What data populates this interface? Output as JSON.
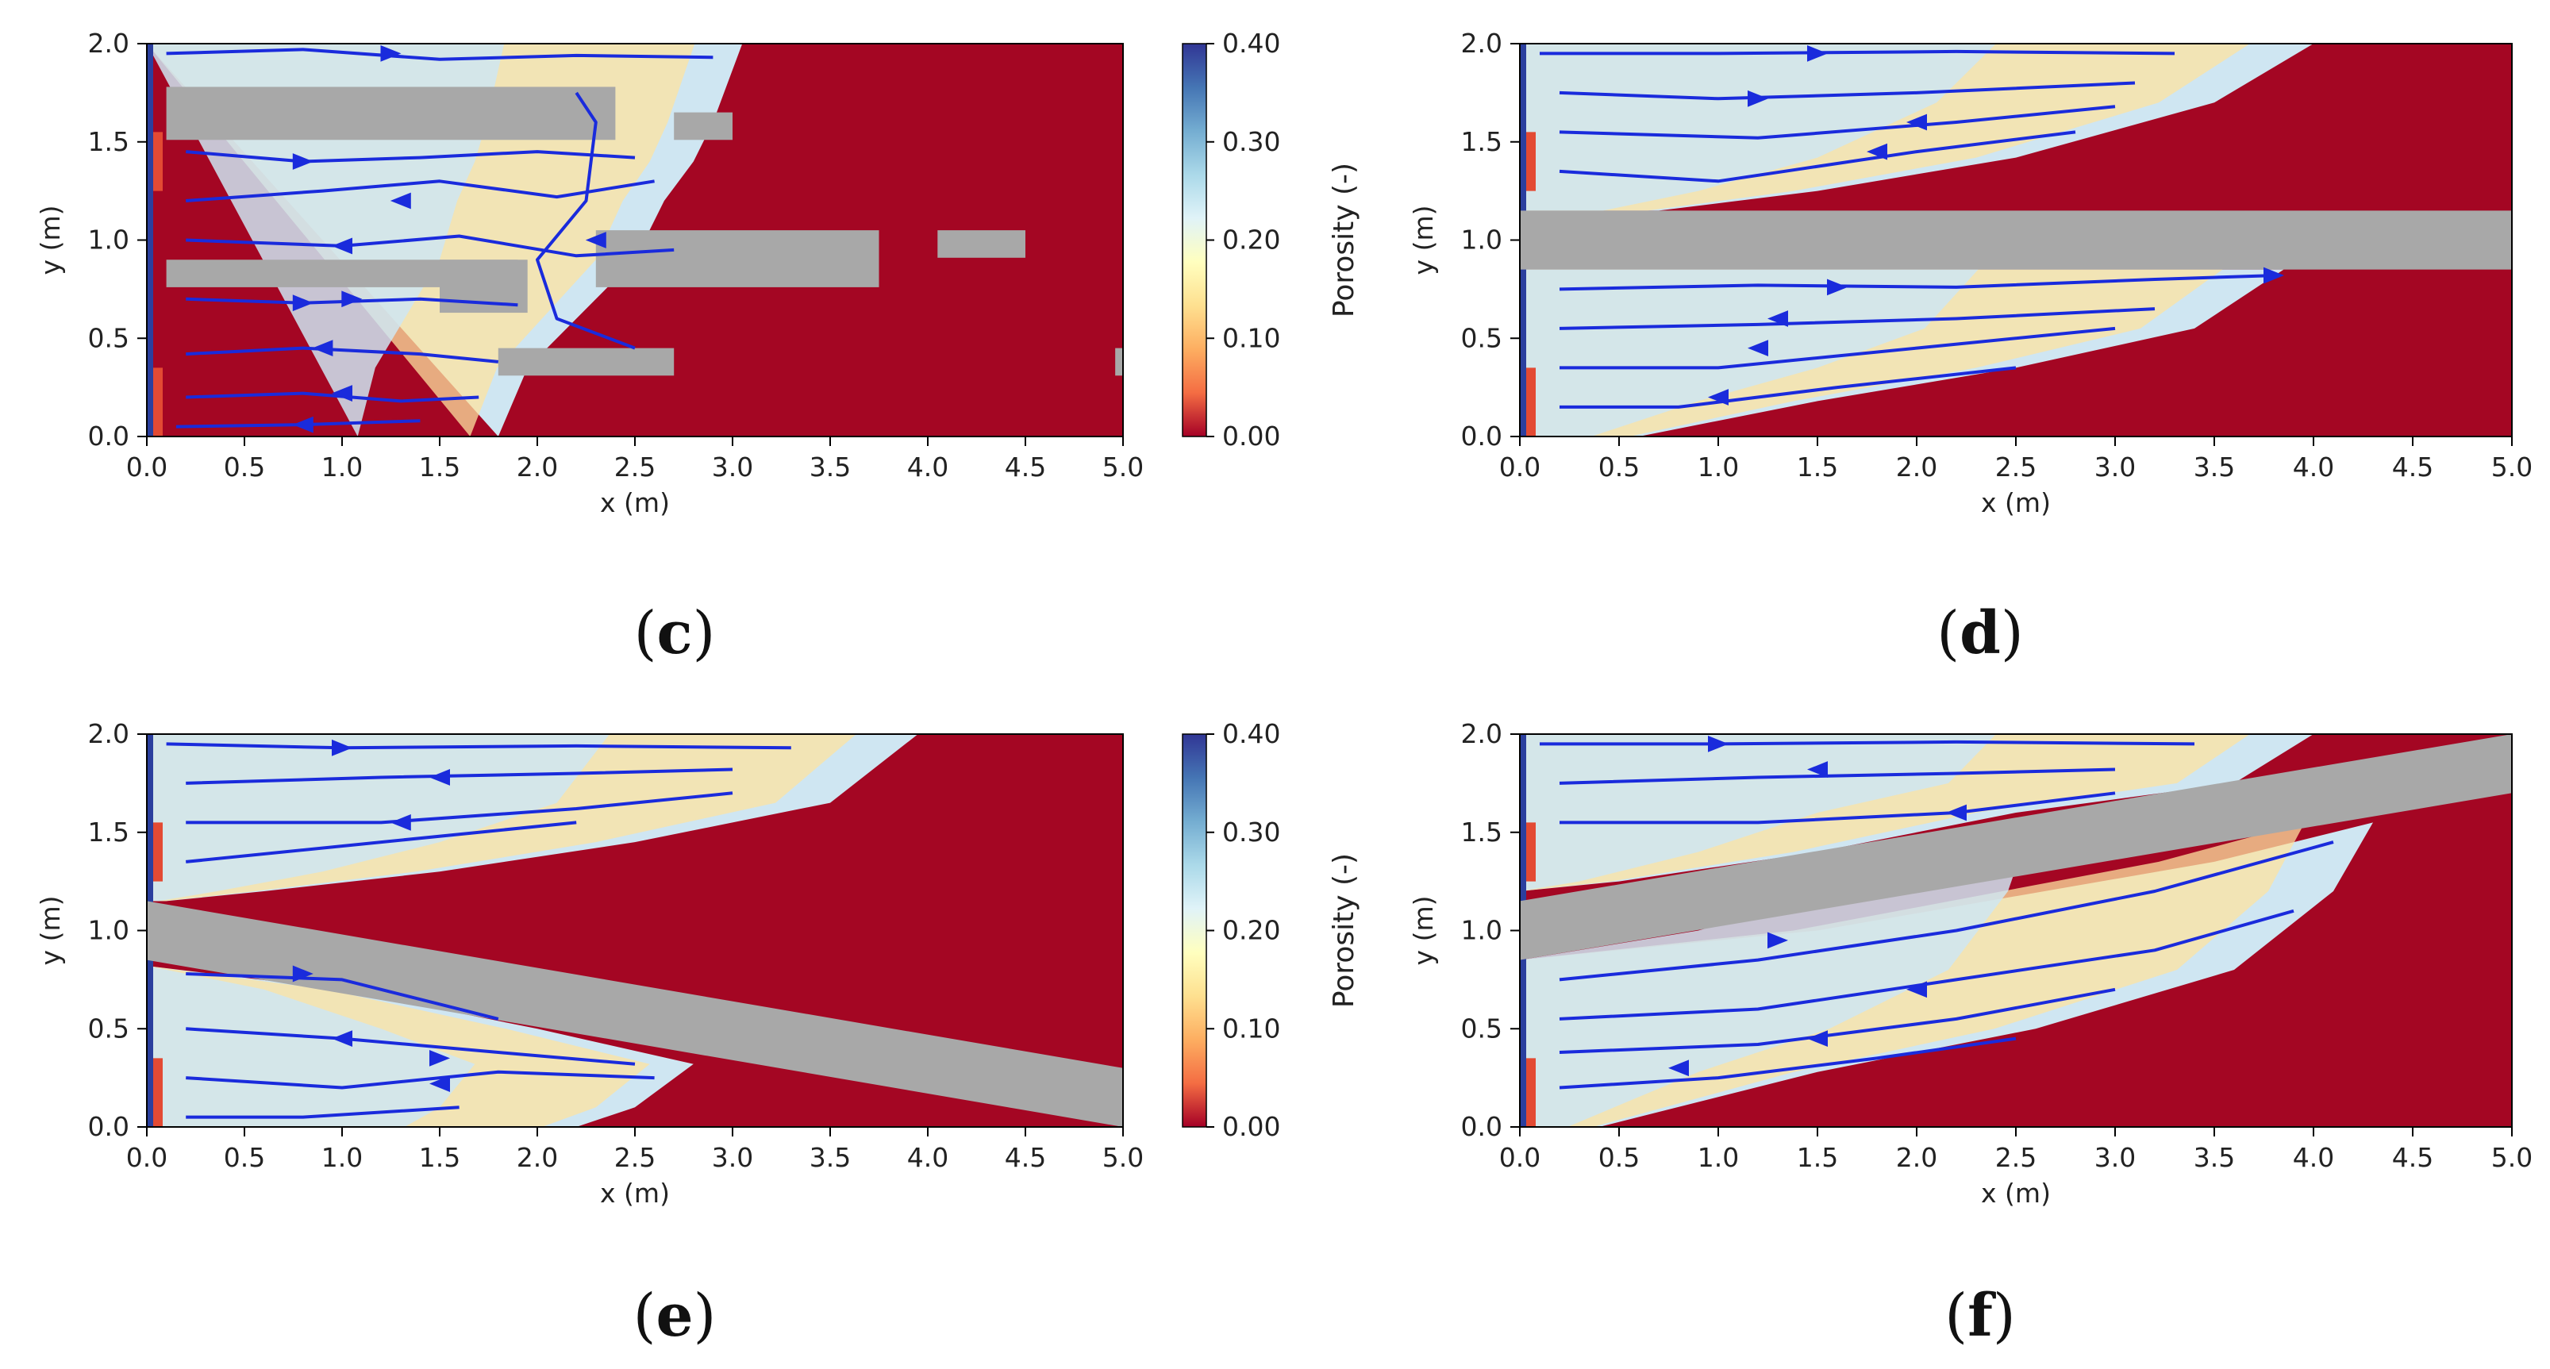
{
  "chart_data": [
    {
      "type": "heatmap",
      "panel_label": "c",
      "xlabel": "x (m)",
      "ylabel": "y (m)",
      "xlim": [
        0.0,
        5.0
      ],
      "ylim": [
        0.0,
        2.0
      ],
      "xticks": [
        "0.0",
        "0.5",
        "1.0",
        "1.5",
        "2.0",
        "2.5",
        "3.0",
        "3.5",
        "4.0",
        "4.5",
        "5.0"
      ],
      "yticks": [
        "0.0",
        "0.5",
        "1.0",
        "1.5",
        "2.0"
      ],
      "front": [
        [
          0.0,
          2.0
        ],
        [
          3.05,
          2.0
        ],
        [
          2.9,
          1.6
        ],
        [
          2.8,
          1.4
        ],
        [
          2.65,
          1.2
        ],
        [
          2.5,
          0.9
        ],
        [
          2.2,
          0.6
        ],
        [
          1.95,
          0.35
        ],
        [
          1.8,
          0.0
        ]
      ],
      "barriers": [
        {
          "x0": 0.1,
          "x1": 2.4,
          "y0": 1.51,
          "y1": 1.78
        },
        {
          "x0": 2.7,
          "x1": 3.0,
          "y0": 1.51,
          "y1": 1.65
        },
        {
          "x0": 0.1,
          "x1": 1.9,
          "y0": 0.76,
          "y1": 0.9
        },
        {
          "x0": 1.5,
          "x1": 1.95,
          "y0": 0.63,
          "y1": 0.9
        },
        {
          "x0": 2.3,
          "x1": 3.75,
          "y0": 0.76,
          "y1": 1.05
        },
        {
          "x0": 4.05,
          "x1": 4.5,
          "y0": 0.91,
          "y1": 1.05
        },
        {
          "x0": 1.8,
          "x1": 2.7,
          "y0": 0.31,
          "y1": 0.45
        },
        {
          "x0": 4.96,
          "x1": 5.0,
          "y0": 0.31,
          "y1": 0.45
        }
      ],
      "streamlines": [
        [
          [
            0.1,
            1.95
          ],
          [
            0.8,
            1.97
          ],
          [
            1.5,
            1.92
          ],
          [
            2.2,
            1.94
          ],
          [
            2.9,
            1.93
          ]
        ],
        [
          [
            0.2,
            1.45
          ],
          [
            0.8,
            1.4
          ],
          [
            1.4,
            1.42
          ],
          [
            2.0,
            1.45
          ],
          [
            2.5,
            1.42
          ]
        ],
        [
          [
            0.2,
            1.2
          ],
          [
            0.9,
            1.25
          ],
          [
            1.5,
            1.3
          ],
          [
            2.1,
            1.22
          ],
          [
            2.6,
            1.3
          ]
        ],
        [
          [
            0.2,
            1.0
          ],
          [
            1.0,
            0.97
          ],
          [
            1.6,
            1.02
          ],
          [
            2.2,
            0.92
          ],
          [
            2.7,
            0.95
          ]
        ],
        [
          [
            0.2,
            0.7
          ],
          [
            0.8,
            0.68
          ],
          [
            1.4,
            0.7
          ],
          [
            1.9,
            0.67
          ]
        ],
        [
          [
            0.2,
            0.42
          ],
          [
            0.8,
            0.45
          ],
          [
            1.4,
            0.42
          ],
          [
            1.8,
            0.38
          ]
        ],
        [
          [
            0.2,
            0.2
          ],
          [
            0.8,
            0.22
          ],
          [
            1.3,
            0.18
          ],
          [
            1.7,
            0.2
          ]
        ],
        [
          [
            0.15,
            0.05
          ],
          [
            0.8,
            0.06
          ],
          [
            1.4,
            0.08
          ]
        ],
        [
          [
            2.2,
            1.75
          ],
          [
            2.3,
            1.6
          ],
          [
            2.25,
            1.2
          ],
          [
            2.0,
            0.9
          ],
          [
            2.1,
            0.6
          ],
          [
            2.5,
            0.45
          ]
        ]
      ],
      "arrows": [
        [
          1.25,
          1.95,
          "right"
        ],
        [
          0.8,
          1.4,
          "right"
        ],
        [
          1.3,
          1.2,
          "left"
        ],
        [
          1.0,
          0.97,
          "left"
        ],
        [
          0.8,
          0.68,
          "right"
        ],
        [
          1.05,
          0.7,
          "right"
        ],
        [
          0.9,
          0.45,
          "left"
        ],
        [
          1.0,
          0.22,
          "left"
        ],
        [
          0.8,
          0.06,
          "left"
        ],
        [
          2.3,
          1.0,
          "left"
        ]
      ]
    },
    {
      "type": "heatmap",
      "panel_label": "d",
      "xlabel": "x (m)",
      "ylabel": "y (m)",
      "xlim": [
        0.0,
        5.0
      ],
      "ylim": [
        0.0,
        2.0
      ],
      "xticks": [
        "0.0",
        "0.5",
        "1.0",
        "1.5",
        "2.0",
        "2.5",
        "3.0",
        "3.5",
        "4.0",
        "4.5",
        "5.0"
      ],
      "yticks": [
        "0.0",
        "0.5",
        "1.0",
        "1.5",
        "2.0"
      ],
      "front": [
        [
          0.0,
          2.0
        ],
        [
          4.0,
          2.0
        ],
        [
          3.5,
          1.7
        ],
        [
          2.5,
          1.42
        ],
        [
          1.5,
          1.25
        ],
        [
          0.7,
          1.15
        ],
        [
          0.0,
          1.15
        ]
      ],
      "front2": [
        [
          0.0,
          0.85
        ],
        [
          3.85,
          0.85
        ],
        [
          3.4,
          0.55
        ],
        [
          2.5,
          0.35
        ],
        [
          1.5,
          0.18
        ],
        [
          0.6,
          0.0
        ],
        [
          0.0,
          0.0
        ]
      ],
      "barriers": [
        {
          "x0": 0.0,
          "x1": 5.0,
          "y0": 0.85,
          "y1": 1.15
        }
      ],
      "streamlines": [
        [
          [
            0.1,
            1.95
          ],
          [
            1.0,
            1.95
          ],
          [
            2.2,
            1.96
          ],
          [
            3.3,
            1.95
          ]
        ],
        [
          [
            0.2,
            1.75
          ],
          [
            1.0,
            1.72
          ],
          [
            2.0,
            1.75
          ],
          [
            3.1,
            1.8
          ]
        ],
        [
          [
            0.2,
            1.55
          ],
          [
            1.2,
            1.52
          ],
          [
            2.2,
            1.6
          ],
          [
            3.0,
            1.68
          ]
        ],
        [
          [
            0.2,
            1.35
          ],
          [
            1.0,
            1.3
          ],
          [
            2.0,
            1.45
          ],
          [
            2.8,
            1.55
          ]
        ],
        [
          [
            0.2,
            0.75
          ],
          [
            1.2,
            0.77
          ],
          [
            2.2,
            0.76
          ],
          [
            3.2,
            0.8
          ],
          [
            3.8,
            0.82
          ]
        ],
        [
          [
            0.2,
            0.55
          ],
          [
            1.2,
            0.57
          ],
          [
            2.2,
            0.6
          ],
          [
            3.2,
            0.65
          ]
        ],
        [
          [
            0.2,
            0.35
          ],
          [
            1.0,
            0.35
          ],
          [
            2.0,
            0.45
          ],
          [
            3.0,
            0.55
          ]
        ],
        [
          [
            0.2,
            0.15
          ],
          [
            0.8,
            0.15
          ],
          [
            1.6,
            0.25
          ],
          [
            2.5,
            0.35
          ]
        ]
      ],
      "arrows": [
        [
          1.5,
          1.95,
          "right"
        ],
        [
          1.2,
          1.72,
          "right"
        ],
        [
          2.0,
          1.6,
          "left"
        ],
        [
          1.8,
          1.45,
          "left"
        ],
        [
          1.6,
          0.76,
          "right"
        ],
        [
          1.3,
          0.6,
          "left"
        ],
        [
          1.2,
          0.45,
          "left"
        ],
        [
          1.0,
          0.2,
          "left"
        ],
        [
          3.8,
          0.82,
          "right"
        ]
      ]
    },
    {
      "type": "heatmap",
      "panel_label": "e",
      "xlabel": "x (m)",
      "ylabel": "y (m)",
      "xlim": [
        0.0,
        5.0
      ],
      "ylim": [
        0.0,
        2.0
      ],
      "xticks": [
        "0.0",
        "0.5",
        "1.0",
        "1.5",
        "2.0",
        "2.5",
        "3.0",
        "3.5",
        "4.0",
        "4.5",
        "5.0"
      ],
      "yticks": [
        "0.0",
        "0.5",
        "1.0",
        "1.5",
        "2.0"
      ],
      "front": [
        [
          0.0,
          2.0
        ],
        [
          3.95,
          2.0
        ],
        [
          3.5,
          1.65
        ],
        [
          2.5,
          1.45
        ],
        [
          1.5,
          1.3
        ],
        [
          0.6,
          1.2
        ],
        [
          0.1,
          1.15
        ],
        [
          0.0,
          1.15
        ]
      ],
      "front2": [
        [
          0.0,
          0.82
        ],
        [
          1.0,
          0.7
        ],
        [
          2.0,
          0.5
        ],
        [
          2.8,
          0.32
        ],
        [
          2.5,
          0.1
        ],
        [
          2.2,
          0.0
        ],
        [
          0.0,
          0.0
        ]
      ],
      "barrier_band": [
        [
          0.0,
          0.85
        ],
        [
          5.0,
          0.0
        ],
        [
          5.0,
          0.3
        ],
        [
          0.0,
          1.15
        ]
      ],
      "streamlines": [
        [
          [
            0.1,
            1.95
          ],
          [
            1.0,
            1.93
          ],
          [
            2.2,
            1.94
          ],
          [
            3.3,
            1.93
          ]
        ],
        [
          [
            0.2,
            1.75
          ],
          [
            1.2,
            1.78
          ],
          [
            2.2,
            1.8
          ],
          [
            3.0,
            1.82
          ]
        ],
        [
          [
            0.2,
            1.55
          ],
          [
            1.2,
            1.55
          ],
          [
            2.2,
            1.62
          ],
          [
            3.0,
            1.7
          ]
        ],
        [
          [
            0.2,
            1.35
          ],
          [
            1.2,
            1.45
          ],
          [
            2.2,
            1.55
          ]
        ],
        [
          [
            0.2,
            0.78
          ],
          [
            1.0,
            0.75
          ],
          [
            1.8,
            0.55
          ]
        ],
        [
          [
            0.2,
            0.5
          ],
          [
            1.0,
            0.45
          ],
          [
            1.8,
            0.38
          ],
          [
            2.5,
            0.32
          ]
        ],
        [
          [
            0.2,
            0.25
          ],
          [
            1.0,
            0.2
          ],
          [
            1.8,
            0.28
          ],
          [
            2.6,
            0.25
          ]
        ],
        [
          [
            0.2,
            0.05
          ],
          [
            0.8,
            0.05
          ],
          [
            1.6,
            0.1
          ]
        ]
      ],
      "arrows": [
        [
          1.0,
          1.93,
          "right"
        ],
        [
          1.5,
          1.78,
          "left"
        ],
        [
          1.3,
          1.55,
          "left"
        ],
        [
          0.8,
          0.78,
          "right"
        ],
        [
          1.0,
          0.45,
          "left"
        ],
        [
          1.5,
          0.35,
          "right"
        ],
        [
          1.5,
          0.22,
          "left"
        ]
      ]
    },
    {
      "type": "heatmap",
      "panel_label": "f",
      "xlabel": "x (m)",
      "ylabel": "y (m)",
      "xlim": [
        0.0,
        5.0
      ],
      "ylim": [
        0.0,
        2.0
      ],
      "xticks": [
        "0.0",
        "0.5",
        "1.0",
        "1.5",
        "2.0",
        "2.5",
        "3.0",
        "3.5",
        "4.0",
        "4.5",
        "5.0"
      ],
      "yticks": [
        "0.0",
        "0.5",
        "1.0",
        "1.5",
        "2.0"
      ],
      "front": [
        [
          0.0,
          2.0
        ],
        [
          4.0,
          2.0
        ],
        [
          3.6,
          1.75
        ],
        [
          2.5,
          1.6
        ],
        [
          1.5,
          1.4
        ],
        [
          0.5,
          1.25
        ],
        [
          0.0,
          1.2
        ]
      ],
      "front2": [
        [
          0.0,
          0.85
        ],
        [
          1.5,
          1.0
        ],
        [
          3.5,
          1.35
        ],
        [
          4.3,
          1.55
        ],
        [
          4.1,
          1.2
        ],
        [
          3.6,
          0.8
        ],
        [
          2.6,
          0.5
        ],
        [
          1.5,
          0.28
        ],
        [
          0.4,
          0.0
        ],
        [
          0.0,
          0.0
        ]
      ],
      "barrier_band": [
        [
          0.0,
          0.85
        ],
        [
          5.0,
          1.7
        ],
        [
          5.0,
          2.0
        ],
        [
          0.0,
          1.15
        ]
      ],
      "streamlines": [
        [
          [
            0.1,
            1.95
          ],
          [
            1.0,
            1.95
          ],
          [
            2.2,
            1.96
          ],
          [
            3.4,
            1.95
          ]
        ],
        [
          [
            0.2,
            1.75
          ],
          [
            1.2,
            1.78
          ],
          [
            2.2,
            1.8
          ],
          [
            3.0,
            1.82
          ]
        ],
        [
          [
            0.2,
            1.55
          ],
          [
            1.2,
            1.55
          ],
          [
            2.2,
            1.6
          ],
          [
            3.0,
            1.7
          ]
        ],
        [
          [
            0.2,
            0.75
          ],
          [
            1.2,
            0.85
          ],
          [
            2.2,
            1.0
          ],
          [
            3.2,
            1.2
          ],
          [
            4.1,
            1.45
          ]
        ],
        [
          [
            0.2,
            0.55
          ],
          [
            1.2,
            0.6
          ],
          [
            2.2,
            0.75
          ],
          [
            3.2,
            0.9
          ],
          [
            3.9,
            1.1
          ]
        ],
        [
          [
            0.2,
            0.38
          ],
          [
            1.2,
            0.42
          ],
          [
            2.2,
            0.55
          ],
          [
            3.0,
            0.7
          ]
        ],
        [
          [
            0.2,
            0.2
          ],
          [
            1.0,
            0.25
          ],
          [
            1.8,
            0.35
          ],
          [
            2.5,
            0.45
          ]
        ]
      ],
      "arrows": [
        [
          1.0,
          1.95,
          "right"
        ],
        [
          1.5,
          1.82,
          "left"
        ],
        [
          2.2,
          1.6,
          "left"
        ],
        [
          1.3,
          0.95,
          "right"
        ],
        [
          2.0,
          0.7,
          "left"
        ],
        [
          1.5,
          0.45,
          "left"
        ],
        [
          0.8,
          0.3,
          "left"
        ]
      ]
    }
  ],
  "colorbar": {
    "label": "Porosity (-)",
    "ticks": [
      "0.40",
      "0.30",
      "0.20",
      "0.10",
      "0.00"
    ],
    "stops": [
      "#a50026",
      "#f46d43",
      "#fdae61",
      "#fee090",
      "#ffffbf",
      "#e0f3f8",
      "#abd9e9",
      "#74add1",
      "#4575b4",
      "#313695"
    ]
  },
  "colors": {
    "front_field": "#a40623",
    "barrier": "#a8a8a8",
    "zone_yellow": "#fde3a0",
    "zone_blue": "#cfe6f2",
    "streamline": "#1a2bdc"
  },
  "captions": [
    {
      "open": "(",
      "label": "c",
      "close": ")"
    },
    {
      "open": "(",
      "label": "d",
      "close": ")"
    },
    {
      "open": "(",
      "label": "e",
      "close": ")"
    },
    {
      "open": "(",
      "label": "f",
      "close": ")"
    }
  ]
}
